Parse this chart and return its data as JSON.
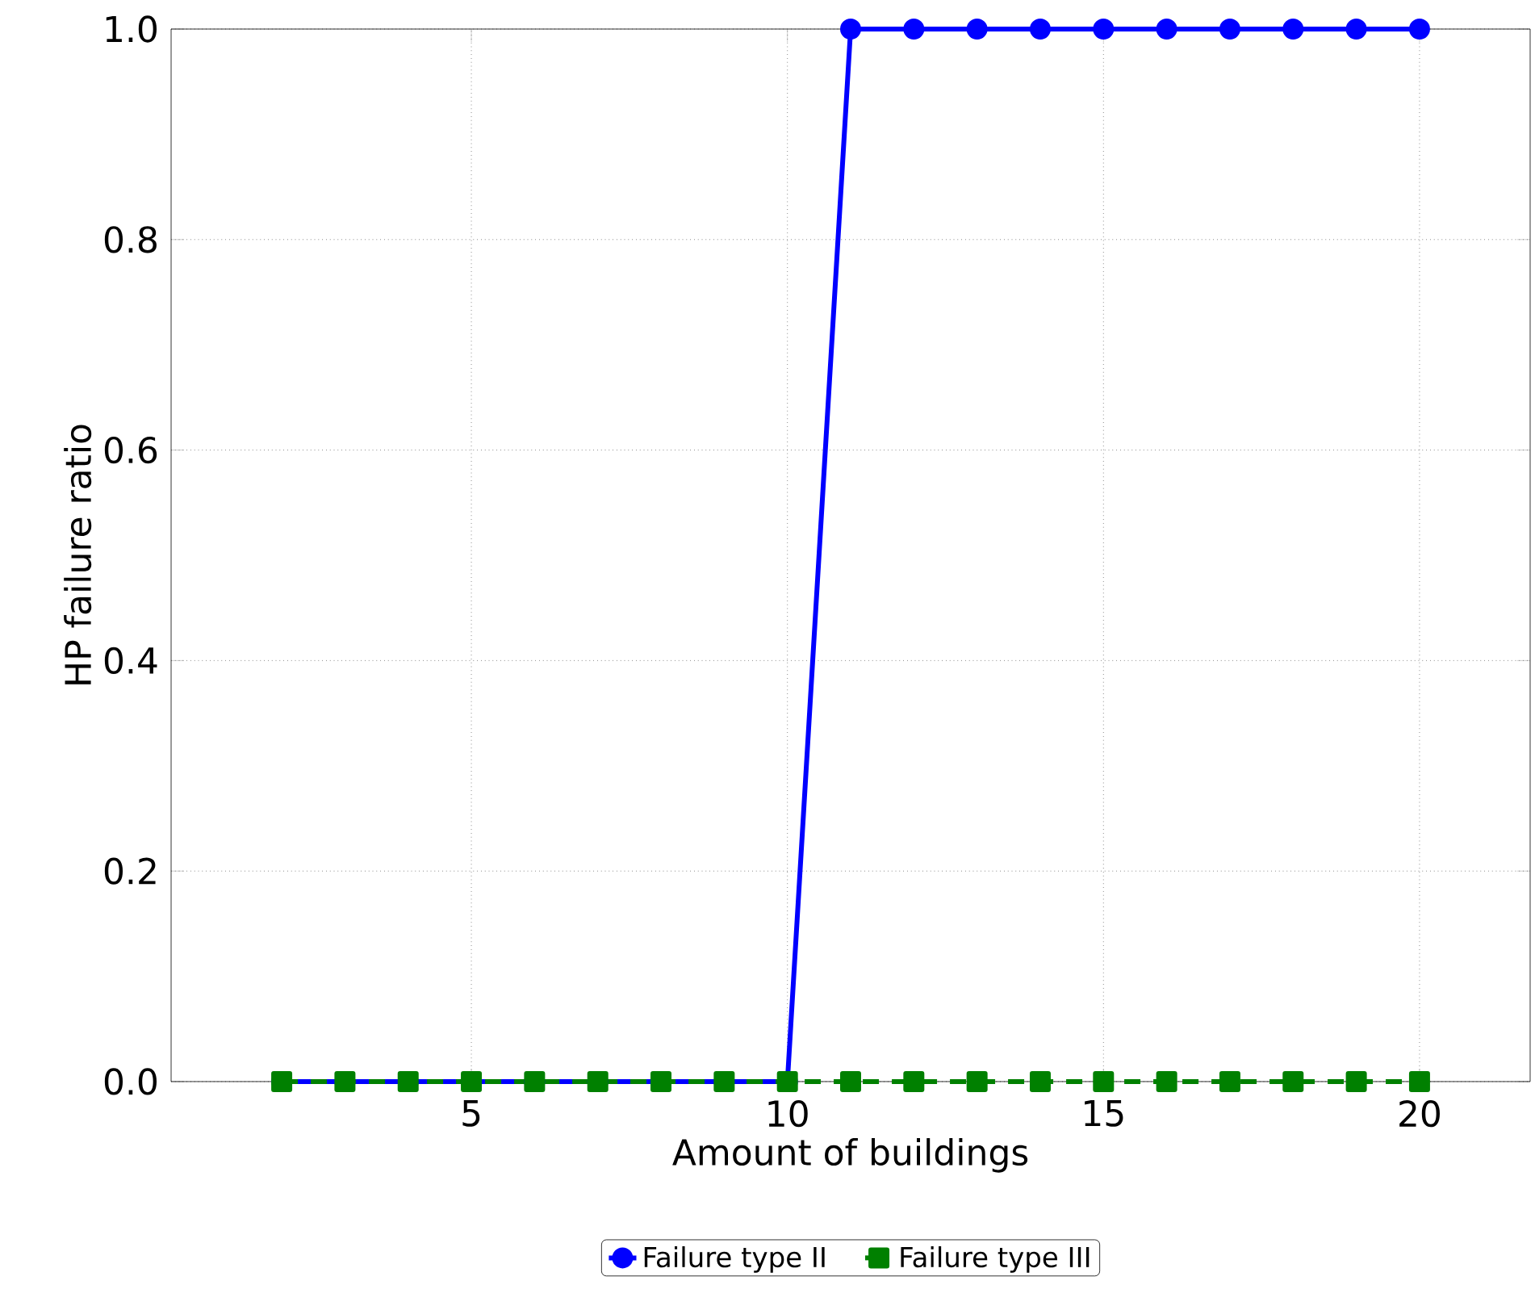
{
  "chart_data": {
    "type": "line",
    "xlabel": "Amount of buildings",
    "ylabel": "HP failure ratio",
    "x": [
      2,
      3,
      4,
      5,
      6,
      7,
      8,
      9,
      10,
      11,
      12,
      13,
      14,
      15,
      16,
      17,
      18,
      19,
      20
    ],
    "series": [
      {
        "name": "Failure type II",
        "color": "#0000ff",
        "marker": "circle",
        "line_style": "solid",
        "values": [
          0,
          0,
          0,
          0,
          0,
          0,
          0,
          0,
          0,
          1,
          1,
          1,
          1,
          1,
          1,
          1,
          1,
          1,
          1
        ]
      },
      {
        "name": "Failure type III",
        "color": "#008000",
        "marker": "square",
        "line_style": "dashed",
        "values": [
          0,
          0,
          0,
          0,
          0,
          0,
          0,
          0,
          0,
          0,
          0,
          0,
          0,
          0,
          0,
          0,
          0,
          0,
          0
        ]
      }
    ],
    "xlim": [
      0.25,
      21.75
    ],
    "ylim": [
      0,
      1
    ],
    "xticks": [
      5,
      10,
      15,
      20
    ],
    "yticks": [
      {
        "value": 0,
        "label": "0.0"
      },
      0.2,
      0.4,
      0.6,
      0.8,
      {
        "value": 1,
        "label": "1.0"
      }
    ],
    "grid": true,
    "legend": "bottom"
  }
}
